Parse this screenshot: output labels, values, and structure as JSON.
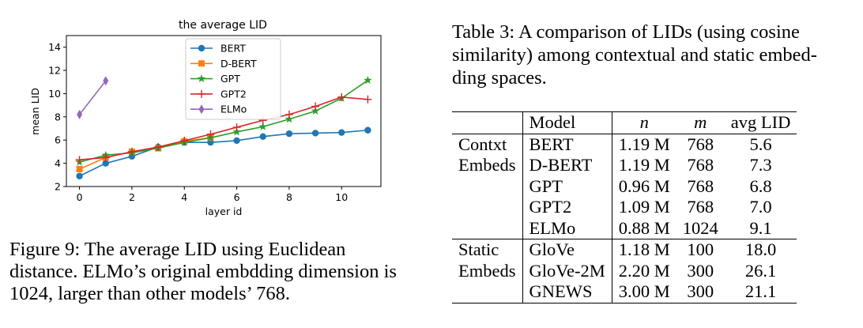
{
  "figure": {
    "caption": "Figure 9: The average LID using Euclidean distance. ELMo’s original embdding dimension is 1024, larger than other models’ 768."
  },
  "chart_data": {
    "type": "line",
    "title": "the average LID",
    "xlabel": "layer id",
    "ylabel": "mean LID",
    "xlim": [
      -0.5,
      11.5
    ],
    "ylim": [
      2,
      15
    ],
    "xticks": [
      0,
      2,
      4,
      6,
      8,
      10
    ],
    "yticks": [
      2,
      4,
      6,
      8,
      10,
      12,
      14
    ],
    "legend_position": "upper center",
    "grid": false,
    "series": [
      {
        "name": "BERT",
        "color": "#1f77b4",
        "marker": "circle",
        "x": [
          0,
          1,
          2,
          3,
          4,
          5,
          6,
          7,
          8,
          9,
          10,
          11
        ],
        "y": [
          2.9,
          4.0,
          4.6,
          5.4,
          5.8,
          5.8,
          5.95,
          6.3,
          6.55,
          6.6,
          6.65,
          6.85
        ]
      },
      {
        "name": "D-BERT",
        "color": "#ff7f0e",
        "marker": "square",
        "x": [
          0,
          1,
          2,
          3,
          4,
          5
        ],
        "y": [
          3.5,
          4.5,
          5.0,
          5.3,
          5.9,
          6.2
        ]
      },
      {
        "name": "GPT",
        "color": "#2ca02c",
        "marker": "star",
        "x": [
          0,
          1,
          2,
          3,
          4,
          5,
          6,
          7,
          8,
          9,
          10,
          11
        ],
        "y": [
          4.1,
          4.7,
          4.9,
          5.3,
          5.8,
          6.2,
          6.7,
          7.15,
          7.8,
          8.5,
          9.6,
          11.15
        ]
      },
      {
        "name": "GPT2",
        "color": "#d62728",
        "marker": "plus",
        "x": [
          0,
          1,
          2,
          3,
          4,
          5,
          6,
          7,
          8,
          9,
          10,
          11
        ],
        "y": [
          4.3,
          4.5,
          5.0,
          5.4,
          5.95,
          6.5,
          7.1,
          7.7,
          8.2,
          8.9,
          9.7,
          9.5
        ]
      },
      {
        "name": "ELMo",
        "color": "#9467bd",
        "marker": "thin_diamond",
        "x": [
          0,
          1
        ],
        "y": [
          8.2,
          11.1
        ]
      }
    ]
  },
  "table": {
    "caption": "Table 3: A comparison of LIDs (using cosine similarity) among contextual and static embedding spaces.",
    "caption_lines": [
      "Table 3: A comparison of LIDs (using cosine",
      "similarity) among contextual and static embed-",
      "ding spaces."
    ],
    "columns": [
      "",
      "Model",
      "n",
      "m",
      "avg LID"
    ],
    "groups": [
      {
        "label_lines": [
          "Contxt",
          "Embeds"
        ],
        "rows": [
          {
            "model": "BERT",
            "n": "1.19 M",
            "m": "768",
            "avg": "5.6"
          },
          {
            "model": "D-BERT",
            "n": "1.19 M",
            "m": "768",
            "avg": "7.3"
          },
          {
            "model": "GPT",
            "n": "0.96 M",
            "m": "768",
            "avg": "6.8"
          },
          {
            "model": "GPT2",
            "n": "1.09 M",
            "m": "768",
            "avg": "7.0"
          },
          {
            "model": "ELMo",
            "n": "0.88 M",
            "m": "1024",
            "avg": "9.1"
          }
        ]
      },
      {
        "label_lines": [
          "Static",
          "Embeds"
        ],
        "rows": [
          {
            "model": "GloVe",
            "n": "1.18 M",
            "m": "100",
            "avg": "18.0"
          },
          {
            "model": "GloVe-2M",
            "n": "2.20 M",
            "m": "300",
            "avg": "26.1"
          },
          {
            "model": "GNEWS",
            "n": "3.00 M",
            "m": "300",
            "avg": "21.1"
          }
        ]
      }
    ]
  }
}
